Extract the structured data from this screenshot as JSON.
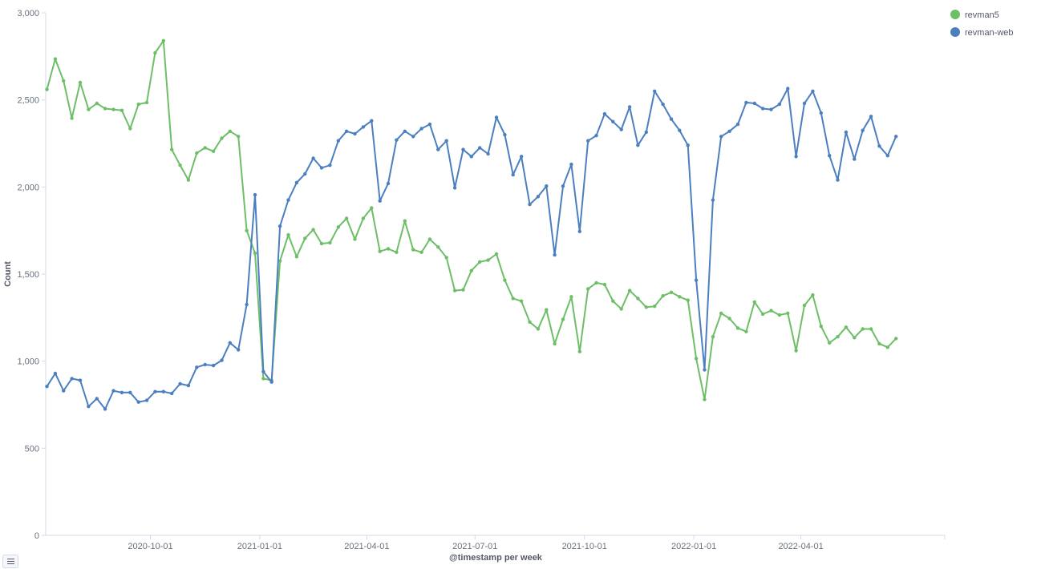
{
  "chart_data": {
    "type": "line",
    "xlabel": "@timestamp per week",
    "ylabel": "Count",
    "ylim": [
      0,
      3000
    ],
    "yticks": [
      0,
      500,
      1000,
      1500,
      2000,
      2500,
      3000
    ],
    "ytick_labels": [
      "0",
      "500",
      "1,000",
      "1,500",
      "2,000",
      "2,500",
      "3,000"
    ],
    "xlim": [
      "2020-07-05",
      "2022-07-31"
    ],
    "xticks": [
      "2020-10-01",
      "2021-01-01",
      "2021-04-01",
      "2021-07-01",
      "2021-10-01",
      "2022-01-01",
      "2022-04-01"
    ],
    "x": [
      "2020-07-06",
      "2020-07-13",
      "2020-07-20",
      "2020-07-27",
      "2020-08-03",
      "2020-08-10",
      "2020-08-17",
      "2020-08-24",
      "2020-08-31",
      "2020-09-07",
      "2020-09-14",
      "2020-09-21",
      "2020-09-28",
      "2020-10-05",
      "2020-10-12",
      "2020-10-19",
      "2020-10-26",
      "2020-11-02",
      "2020-11-09",
      "2020-11-16",
      "2020-11-23",
      "2020-11-30",
      "2020-12-07",
      "2020-12-14",
      "2020-12-21",
      "2020-12-28",
      "2021-01-04",
      "2021-01-11",
      "2021-01-18",
      "2021-01-25",
      "2021-02-01",
      "2021-02-08",
      "2021-02-15",
      "2021-02-22",
      "2021-03-01",
      "2021-03-08",
      "2021-03-15",
      "2021-03-22",
      "2021-03-29",
      "2021-04-05",
      "2021-04-12",
      "2021-04-19",
      "2021-04-26",
      "2021-05-03",
      "2021-05-10",
      "2021-05-17",
      "2021-05-24",
      "2021-05-31",
      "2021-06-07",
      "2021-06-14",
      "2021-06-21",
      "2021-06-28",
      "2021-07-05",
      "2021-07-12",
      "2021-07-19",
      "2021-07-26",
      "2021-08-02",
      "2021-08-09",
      "2021-08-16",
      "2021-08-23",
      "2021-08-30",
      "2021-09-06",
      "2021-09-13",
      "2021-09-20",
      "2021-09-27",
      "2021-10-04",
      "2021-10-11",
      "2021-10-18",
      "2021-10-25",
      "2021-11-01",
      "2021-11-08",
      "2021-11-15",
      "2021-11-22",
      "2021-11-29",
      "2021-12-06",
      "2021-12-13",
      "2021-12-20",
      "2021-12-27",
      "2022-01-03",
      "2022-01-10",
      "2022-01-17",
      "2022-01-24",
      "2022-01-31",
      "2022-02-07",
      "2022-02-14",
      "2022-02-21",
      "2022-02-28",
      "2022-03-07",
      "2022-03-14",
      "2022-03-21",
      "2022-03-28",
      "2022-04-04",
      "2022-04-11",
      "2022-04-18",
      "2022-04-25",
      "2022-05-02",
      "2022-05-09",
      "2022-05-16",
      "2022-05-23",
      "2022-05-30",
      "2022-06-06",
      "2022-06-13",
      "2022-06-20"
    ],
    "series": [
      {
        "name": "revman5",
        "color": "#6dbf67",
        "values": [
          2560,
          2735,
          2610,
          2395,
          2600,
          2445,
          2480,
          2450,
          2445,
          2440,
          2335,
          2475,
          2485,
          2770,
          2840,
          2215,
          2125,
          2040,
          2195,
          2225,
          2205,
          2280,
          2320,
          2290,
          1750,
          1620,
          900,
          890,
          1575,
          1725,
          1600,
          1705,
          1755,
          1675,
          1680,
          1770,
          1820,
          1700,
          1820,
          1880,
          1630,
          1645,
          1625,
          1805,
          1640,
          1625,
          1700,
          1655,
          1595,
          1405,
          1410,
          1520,
          1570,
          1580,
          1615,
          1465,
          1360,
          1345,
          1225,
          1185,
          1295,
          1100,
          1240,
          1370,
          1055,
          1415,
          1450,
          1440,
          1345,
          1300,
          1405,
          1360,
          1310,
          1315,
          1375,
          1395,
          1370,
          1350,
          1015,
          780,
          1140,
          1275,
          1245,
          1190,
          1170,
          1340,
          1270,
          1290,
          1265,
          1275,
          1060,
          1320,
          1380,
          1200,
          1105,
          1140,
          1195,
          1135,
          1185,
          1185,
          1100,
          1080,
          1130
        ]
      },
      {
        "name": "revman-web",
        "color": "#4c7fc0",
        "values": [
          855,
          930,
          830,
          900,
          890,
          740,
          785,
          725,
          830,
          820,
          820,
          765,
          775,
          825,
          825,
          815,
          870,
          860,
          965,
          980,
          975,
          1005,
          1105,
          1065,
          1325,
          1955,
          940,
          880,
          1775,
          1925,
          2025,
          2075,
          2165,
          2110,
          2125,
          2265,
          2320,
          2305,
          2345,
          2380,
          1920,
          2020,
          2270,
          2320,
          2290,
          2335,
          2360,
          2215,
          2265,
          1995,
          2215,
          2175,
          2225,
          2190,
          2400,
          2300,
          2070,
          2175,
          1900,
          1945,
          2005,
          1610,
          2005,
          2130,
          1745,
          2265,
          2295,
          2420,
          2375,
          2330,
          2460,
          2240,
          2315,
          2550,
          2475,
          2390,
          2325,
          2240,
          1465,
          950,
          1925,
          2290,
          2320,
          2360,
          2485,
          2480,
          2450,
          2445,
          2475,
          2565,
          2175,
          2480,
          2550,
          2425,
          2180,
          2040,
          2315,
          2160,
          2325,
          2405,
          2235,
          2180,
          2290
        ]
      }
    ],
    "legend": {
      "placement": "top-right"
    },
    "grid": false
  }
}
